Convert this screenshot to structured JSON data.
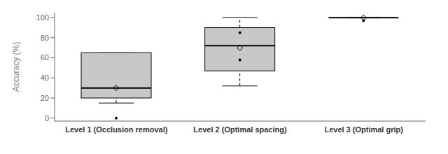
{
  "chart_data": {
    "type": "box",
    "categories": [
      "Level 1 (Occlusion removal)",
      "Level 2 (Optimal spacing)",
      "Level 3 (Optimal grip)"
    ],
    "boxes": [
      {
        "med": 30,
        "q1": 20,
        "q3": 65,
        "whislo": 15,
        "whishi": 65,
        "fliers": [
          0
        ],
        "mean": 30
      },
      {
        "med": 72,
        "q1": 47,
        "q3": 90,
        "whislo": 32,
        "whishi": 100,
        "fliers": [
          58,
          85
        ],
        "mean": 70
      },
      {
        "med": 100,
        "q1": 100,
        "q3": 100,
        "whislo": 100,
        "whishi": 100,
        "fliers": [
          97
        ],
        "mean": 100
      }
    ],
    "ylabel": "Accuracy (%)",
    "ylim": [
      -3,
      105
    ],
    "yticks": [
      0,
      20,
      40,
      60,
      80,
      100
    ],
    "color": "#c8c8c8",
    "grid": false
  }
}
